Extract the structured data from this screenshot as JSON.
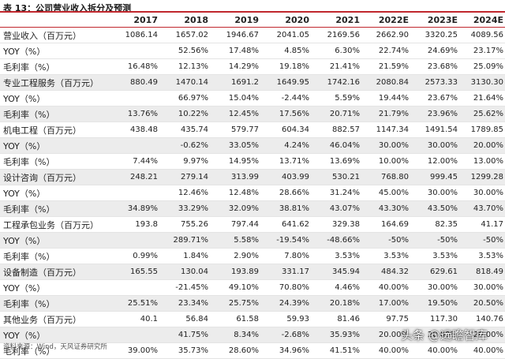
{
  "caption": "表 13：公司营业收入拆分及预测",
  "header": {
    "label": "",
    "years": [
      "2017",
      "2018",
      "2019",
      "2020",
      "2021",
      "2022E",
      "2023E",
      "2024E"
    ]
  },
  "rows": [
    {
      "label": "营业收入（百万元）",
      "values": [
        "1086.14",
        "1657.02",
        "1946.67",
        "2041.05",
        "2169.56",
        "2662.90",
        "3320.25",
        "4089.56"
      ],
      "shade": false
    },
    {
      "label": "YOY（%）",
      "values": [
        "",
        "52.56%",
        "17.48%",
        "4.85%",
        "6.30%",
        "22.74%",
        "24.69%",
        "23.17%"
      ],
      "shade": false
    },
    {
      "label": "毛利率（%）",
      "values": [
        "16.48%",
        "12.13%",
        "14.29%",
        "19.18%",
        "21.41%",
        "21.59%",
        "23.68%",
        "25.09%"
      ],
      "shade": false
    },
    {
      "label": "专业工程服务（百万元）",
      "values": [
        "880.49",
        "1470.14",
        "1691.2",
        "1649.95",
        "1742.16",
        "2080.84",
        "2573.33",
        "3130.30"
      ],
      "shade": true
    },
    {
      "label": "YOY（%）",
      "values": [
        "",
        "66.97%",
        "15.04%",
        "-2.44%",
        "5.59%",
        "19.44%",
        "23.67%",
        "21.64%"
      ],
      "shade": false
    },
    {
      "label": "毛利率（%）",
      "values": [
        "13.76%",
        "10.22%",
        "12.45%",
        "17.56%",
        "20.71%",
        "21.79%",
        "23.96%",
        "25.62%"
      ],
      "shade": true
    },
    {
      "label": "机电工程（百万元）",
      "values": [
        "438.48",
        "435.74",
        "579.77",
        "604.34",
        "882.57",
        "1147.34",
        "1491.54",
        "1789.85"
      ],
      "shade": false
    },
    {
      "label": "YOY（%）",
      "values": [
        "",
        "-0.62%",
        "33.05%",
        "4.24%",
        "46.04%",
        "30.00%",
        "30.00%",
        "20.00%"
      ],
      "shade": true
    },
    {
      "label": "毛利率（%）",
      "values": [
        "7.44%",
        "9.97%",
        "14.95%",
        "13.71%",
        "13.69%",
        "10.00%",
        "12.00%",
        "13.00%"
      ],
      "shade": false
    },
    {
      "label": "设计咨询（百万元）",
      "values": [
        "248.21",
        "279.14",
        "313.99",
        "403.99",
        "530.21",
        "768.80",
        "999.45",
        "1299.28"
      ],
      "shade": true
    },
    {
      "label": "YOY（%）",
      "values": [
        "",
        "12.46%",
        "12.48%",
        "28.66%",
        "31.24%",
        "45.00%",
        "30.00%",
        "30.00%"
      ],
      "shade": false
    },
    {
      "label": "毛利率（%）",
      "values": [
        "34.89%",
        "33.29%",
        "32.09%",
        "38.81%",
        "43.07%",
        "43.30%",
        "43.50%",
        "43.70%"
      ],
      "shade": true
    },
    {
      "label": "工程承包业务（百万元）",
      "values": [
        "193.8",
        "755.26",
        "797.44",
        "641.62",
        "329.38",
        "164.69",
        "82.35",
        "41.17"
      ],
      "shade": false
    },
    {
      "label": "YOY（%）",
      "values": [
        "",
        "289.71%",
        "5.58%",
        "-19.54%",
        "-48.66%",
        "-50%",
        "-50%",
        "-50%"
      ],
      "shade": true
    },
    {
      "label": "毛利率（%）",
      "values": [
        "0.99%",
        "1.84%",
        "2.90%",
        "7.80%",
        "3.53%",
        "3.53%",
        "3.53%",
        "3.53%"
      ],
      "shade": false
    },
    {
      "label": "设备制造（百万元）",
      "values": [
        "165.55",
        "130.04",
        "193.89",
        "331.17",
        "345.94",
        "484.32",
        "629.61",
        "818.49"
      ],
      "shade": true
    },
    {
      "label": "YOY（%）",
      "values": [
        "",
        "-21.45%",
        "49.10%",
        "70.80%",
        "4.46%",
        "40.00%",
        "30.00%",
        "30.00%"
      ],
      "shade": false
    },
    {
      "label": "毛利率（%）",
      "values": [
        "25.51%",
        "23.34%",
        "25.75%",
        "24.39%",
        "20.18%",
        "17.00%",
        "19.50%",
        "20.50%"
      ],
      "shade": true
    },
    {
      "label": "其他业务（百万元）",
      "values": [
        "40.1",
        "56.84",
        "61.58",
        "59.93",
        "81.46",
        "97.75",
        "117.30",
        "140.76"
      ],
      "shade": false
    },
    {
      "label": "YOY（%）",
      "values": [
        "",
        "41.75%",
        "8.34%",
        "-2.68%",
        "35.93%",
        "20.00%",
        "20.00%",
        "20.00%"
      ],
      "shade": true
    },
    {
      "label": "毛利率（%）",
      "values": [
        "39.00%",
        "35.73%",
        "28.60%",
        "34.96%",
        "41.51%",
        "40.00%",
        "40.00%",
        "40.00%"
      ],
      "shade": false
    }
  ],
  "source": "资料来源：Wind，天风证券研究所",
  "watermark": "头条 @远瞻智库",
  "colors": {
    "rule": "#c0272d",
    "shade": "#ececec"
  }
}
